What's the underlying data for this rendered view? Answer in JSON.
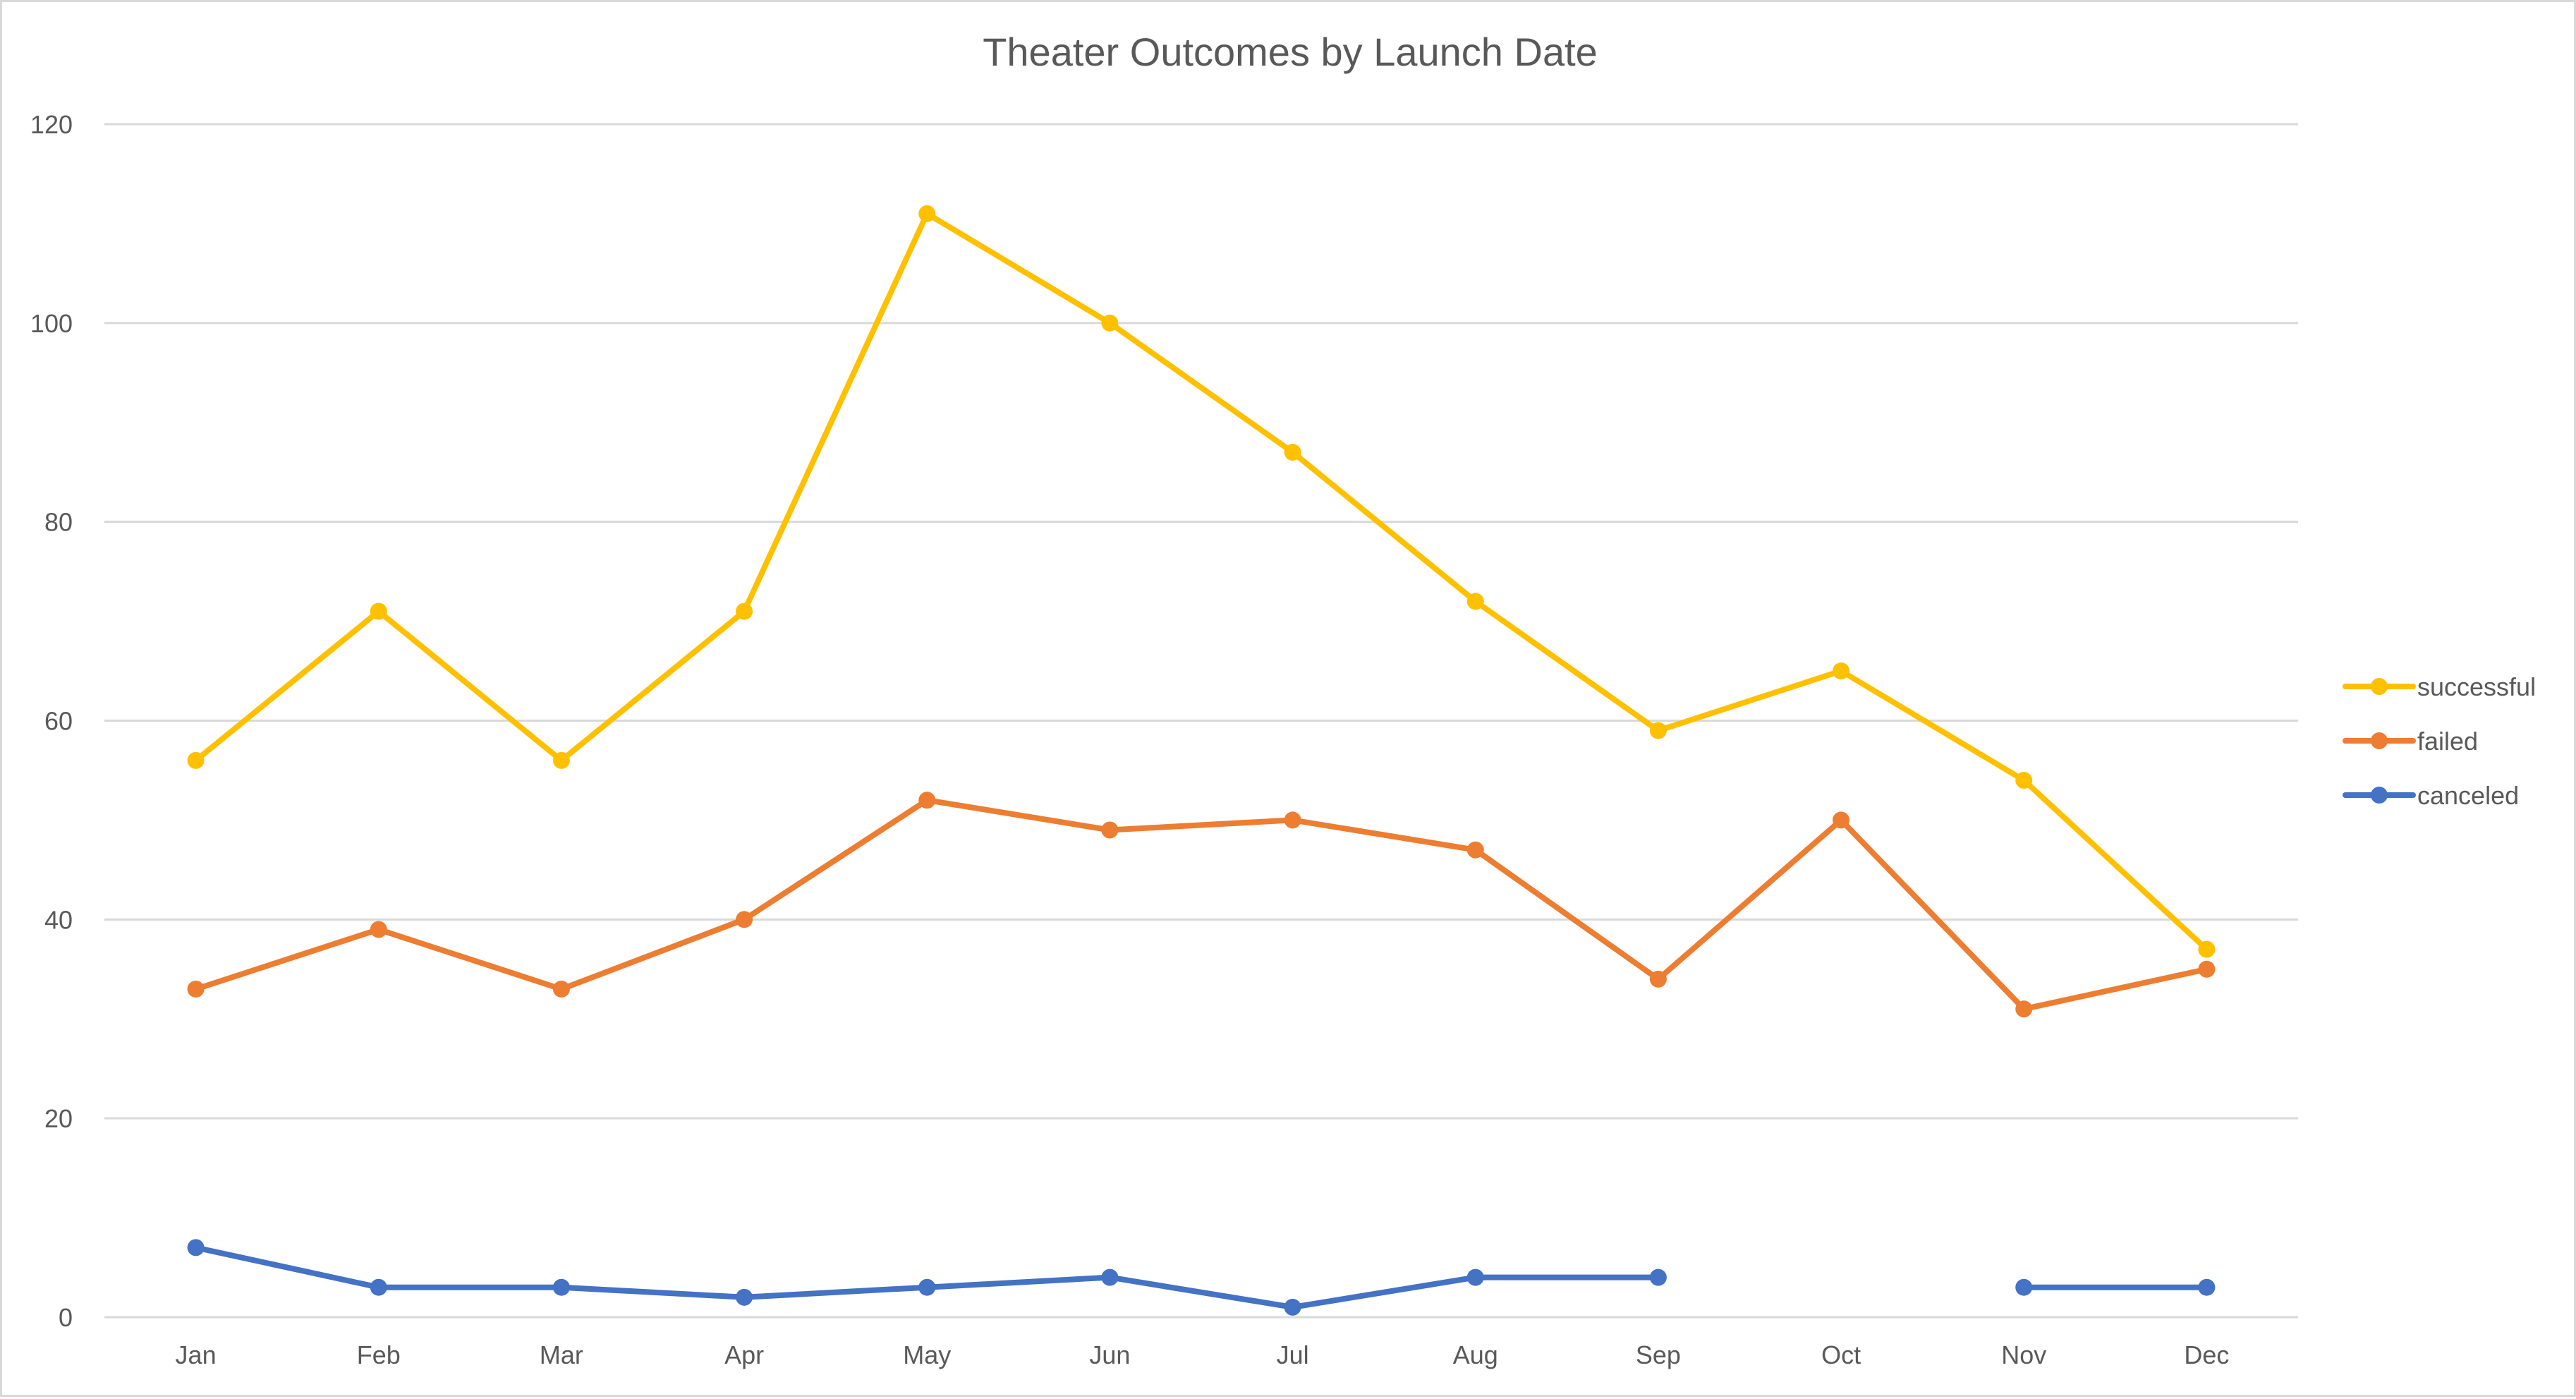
{
  "chart_data": {
    "type": "line",
    "title": "Theater Outcomes by Launch Date",
    "categories": [
      "Jan",
      "Feb",
      "Mar",
      "Apr",
      "May",
      "Jun",
      "Jul",
      "Aug",
      "Sep",
      "Oct",
      "Nov",
      "Dec"
    ],
    "series": [
      {
        "name": "successful",
        "color": "#FFC000",
        "values": [
          56,
          71,
          56,
          71,
          111,
          100,
          87,
          72,
          59,
          65,
          54,
          37
        ]
      },
      {
        "name": "failed",
        "color": "#ED7D31",
        "values": [
          33,
          39,
          33,
          40,
          52,
          49,
          50,
          47,
          34,
          50,
          31,
          35
        ]
      },
      {
        "name": "canceled",
        "color": "#4472C4",
        "values": [
          7,
          3,
          3,
          2,
          3,
          4,
          1,
          4,
          4,
          null,
          3,
          3
        ]
      }
    ],
    "ylim": [
      0,
      120
    ],
    "yticks": [
      0,
      20,
      40,
      60,
      80,
      100,
      120
    ],
    "grid": true,
    "legend": "right"
  }
}
